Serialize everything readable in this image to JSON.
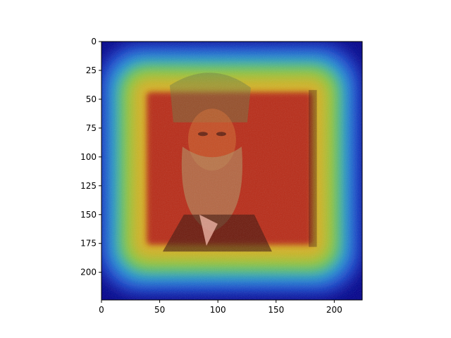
{
  "chart_data": {
    "type": "heatmap",
    "title": "",
    "xlabel": "",
    "ylabel": "",
    "xlim": [
      0,
      224
    ],
    "ylim": [
      224,
      0
    ],
    "y_inverted": true,
    "grid": false,
    "colormap": "jet",
    "xticks": [
      0,
      50,
      100,
      150,
      200
    ],
    "yticks": [
      0,
      25,
      50,
      75,
      100,
      125,
      150,
      175,
      200
    ],
    "xtick_labels": [
      "0",
      "50",
      "100",
      "150",
      "200"
    ],
    "ytick_labels": [
      "0",
      "25",
      "50",
      "75",
      "100",
      "125",
      "150",
      "175",
      "200"
    ],
    "overlay": {
      "description_colors": {
        "background_edge": "#00008b",
        "outer_ring": "#1e90ff",
        "mid_ring": "#7fff00",
        "inner": "#ffff00",
        "hot_core": "#b22222"
      },
      "hot_region": {
        "x": [
          40,
          180
        ],
        "y": [
          45,
          175
        ]
      },
      "portrait": {
        "subject": "bearded man portrait",
        "face_center": [
          95,
          85
        ],
        "beard_bottom": 165
      }
    }
  }
}
